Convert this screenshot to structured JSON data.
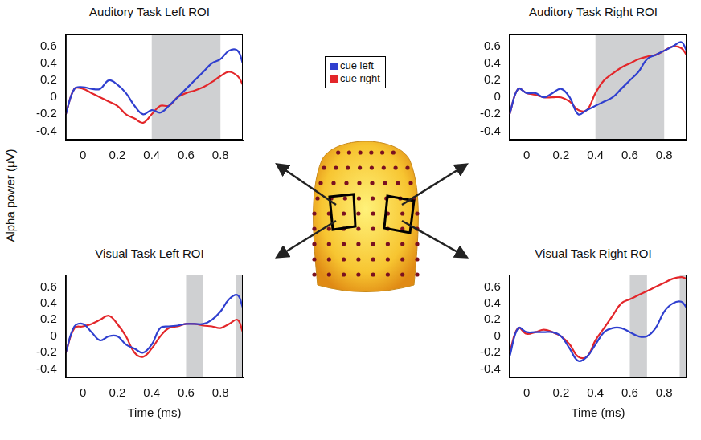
{
  "ylabel": "Alpha power (μV)",
  "chart_data": [
    {
      "type": "line",
      "title": "Auditory Task Left ROI",
      "x": [
        -0.1,
        -0.05,
        0,
        0.05,
        0.1,
        0.15,
        0.2,
        0.25,
        0.3,
        0.35,
        0.4,
        0.45,
        0.5,
        0.55,
        0.6,
        0.65,
        0.7,
        0.75,
        0.8,
        0.85,
        0.9,
        0.93
      ],
      "series": [
        {
          "name": "cue left",
          "color": "#2f3fcf",
          "values": [
            -0.2,
            0.1,
            0.12,
            0.1,
            0.1,
            0.2,
            0.15,
            0.05,
            -0.1,
            -0.2,
            -0.15,
            -0.18,
            -0.1,
            0.0,
            0.1,
            0.2,
            0.3,
            0.4,
            0.45,
            0.55,
            0.55,
            0.4
          ]
        },
        {
          "name": "cue right",
          "color": "#e3262a",
          "values": [
            -0.2,
            0.1,
            0.1,
            0.05,
            0.0,
            -0.05,
            -0.1,
            -0.2,
            -0.25,
            -0.3,
            -0.2,
            -0.1,
            -0.1,
            0.0,
            0.05,
            0.08,
            0.12,
            0.18,
            0.25,
            0.3,
            0.25,
            0.15
          ]
        }
      ],
      "shaded": [
        [
          0.4,
          0.8
        ]
      ],
      "xlim": [
        -0.1,
        0.93
      ],
      "xticks": [
        0,
        0.2,
        0.4,
        0.6,
        0.8
      ],
      "ylim": [
        -0.5,
        0.75
      ],
      "yticks": [
        -0.4,
        -0.2,
        0,
        0.2,
        0.4,
        0.6
      ],
      "grid": false
    },
    {
      "type": "line",
      "title": "Auditory Task Right ROI",
      "x": [
        -0.1,
        -0.05,
        0,
        0.05,
        0.1,
        0.15,
        0.2,
        0.25,
        0.3,
        0.35,
        0.4,
        0.45,
        0.5,
        0.55,
        0.6,
        0.65,
        0.7,
        0.75,
        0.8,
        0.85,
        0.9,
        0.93
      ],
      "series": [
        {
          "name": "cue left",
          "color": "#2f3fcf",
          "values": [
            -0.2,
            0.1,
            0.05,
            0.05,
            0.0,
            0.05,
            0.1,
            0.0,
            -0.2,
            -0.15,
            -0.1,
            -0.05,
            0.0,
            0.1,
            0.2,
            0.3,
            0.45,
            0.5,
            0.55,
            0.6,
            0.65,
            0.55
          ]
        },
        {
          "name": "cue right",
          "color": "#e3262a",
          "values": [
            -0.2,
            0.1,
            0.05,
            0.03,
            0.0,
            0.0,
            0.0,
            -0.05,
            -0.15,
            -0.15,
            0.05,
            0.2,
            0.28,
            0.35,
            0.4,
            0.45,
            0.48,
            0.5,
            0.55,
            0.6,
            0.58,
            0.5
          ]
        }
      ],
      "shaded": [
        [
          0.4,
          0.8
        ]
      ],
      "xlim": [
        -0.1,
        0.93
      ],
      "xticks": [
        0,
        0.2,
        0.4,
        0.6,
        0.8
      ],
      "ylim": [
        -0.5,
        0.75
      ],
      "yticks": [
        -0.4,
        -0.2,
        0,
        0.2,
        0.4,
        0.6
      ],
      "grid": false
    },
    {
      "type": "line",
      "title": "Visual Task Left ROI",
      "xlabel": "Time (ms)",
      "x": [
        -0.1,
        -0.05,
        0,
        0.05,
        0.1,
        0.15,
        0.2,
        0.25,
        0.3,
        0.35,
        0.4,
        0.45,
        0.5,
        0.55,
        0.6,
        0.65,
        0.7,
        0.75,
        0.8,
        0.85,
        0.9,
        0.93
      ],
      "series": [
        {
          "name": "cue left",
          "color": "#2f3fcf",
          "values": [
            -0.2,
            0.12,
            0.15,
            0.05,
            -0.05,
            0.0,
            0.0,
            -0.1,
            -0.15,
            -0.2,
            -0.1,
            0.1,
            0.12,
            0.13,
            0.15,
            0.15,
            0.15,
            0.2,
            0.3,
            0.45,
            0.5,
            0.35
          ]
        },
        {
          "name": "cue right",
          "color": "#e3262a",
          "values": [
            -0.2,
            0.1,
            0.12,
            0.15,
            0.2,
            0.25,
            0.15,
            0.0,
            -0.2,
            -0.25,
            -0.15,
            0.0,
            0.1,
            0.12,
            0.15,
            0.15,
            0.13,
            0.12,
            0.1,
            0.15,
            0.2,
            0.05
          ]
        }
      ],
      "shaded": [
        [
          0.6,
          0.7
        ],
        [
          0.89,
          0.93
        ]
      ],
      "xlim": [
        -0.1,
        0.93
      ],
      "xticks": [
        0,
        0.2,
        0.4,
        0.6,
        0.8
      ],
      "ylim": [
        -0.5,
        0.75
      ],
      "yticks": [
        -0.4,
        -0.2,
        0,
        0.2,
        0.4,
        0.6
      ],
      "grid": false
    },
    {
      "type": "line",
      "title": "Visual Task Right ROI",
      "xlabel": "Time (ms)",
      "x": [
        -0.1,
        -0.05,
        0,
        0.05,
        0.1,
        0.15,
        0.2,
        0.25,
        0.3,
        0.35,
        0.4,
        0.45,
        0.5,
        0.55,
        0.6,
        0.65,
        0.7,
        0.75,
        0.8,
        0.85,
        0.9,
        0.93
      ],
      "series": [
        {
          "name": "cue left",
          "color": "#2f3fcf",
          "values": [
            -0.25,
            0.1,
            0.05,
            0.05,
            0.05,
            0.05,
            0.0,
            -0.15,
            -0.3,
            -0.25,
            -0.1,
            0.05,
            0.1,
            0.1,
            0.05,
            0.0,
            0.0,
            0.1,
            0.3,
            0.4,
            0.42,
            0.35
          ]
        },
        {
          "name": "cue right",
          "color": "#e3262a",
          "values": [
            -0.2,
            0.1,
            0.03,
            0.05,
            0.08,
            0.05,
            0.0,
            -0.1,
            -0.25,
            -0.25,
            -0.05,
            0.1,
            0.25,
            0.4,
            0.45,
            0.5,
            0.55,
            0.6,
            0.65,
            0.7,
            0.72,
            0.7
          ]
        }
      ],
      "shaded": [
        [
          0.6,
          0.7
        ],
        [
          0.89,
          0.93
        ]
      ],
      "xlim": [
        -0.1,
        0.93
      ],
      "xticks": [
        0,
        0.2,
        0.4,
        0.6,
        0.8
      ],
      "ylim": [
        -0.5,
        0.75
      ],
      "yticks": [
        -0.4,
        -0.2,
        0,
        0.2,
        0.4,
        0.6
      ],
      "grid": false
    }
  ]
}
